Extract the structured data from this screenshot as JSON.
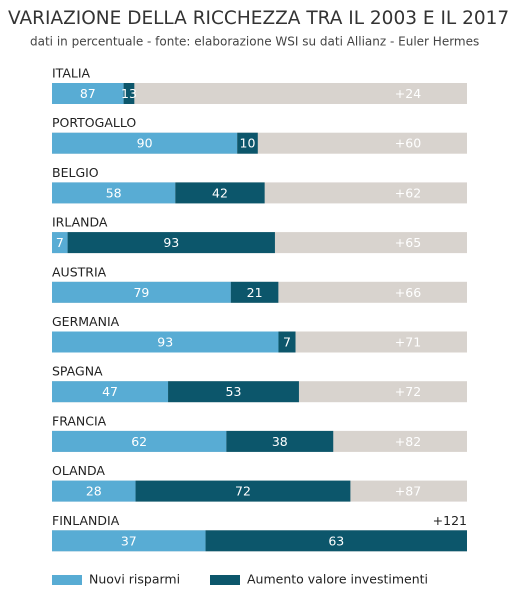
{
  "chart_data": {
    "type": "bar",
    "title": "VARIAZIONE DELLA RICCHEZZA TRA IL 2003 E IL 2017",
    "subtitle": "dati in percentuale - fonte: elaborazione WSI su dati Allianz - Euler Hermes",
    "categories": [
      "ITALIA",
      "PORTOGALLO",
      "BELGIO",
      "IRLANDA",
      "AUSTRIA",
      "GERMANIA",
      "SPAGNA",
      "FRANCIA",
      "OLANDA",
      "FINLANDIA"
    ],
    "series": [
      {
        "name": "Nuovi risparmi",
        "color": "#58acd4",
        "values": [
          87,
          90,
          58,
          7,
          79,
          93,
          47,
          62,
          28,
          37
        ]
      },
      {
        "name": "Aumento valore investimenti",
        "color": "#0c566b",
        "values": [
          13,
          10,
          42,
          93,
          21,
          7,
          53,
          38,
          72,
          63
        ]
      }
    ],
    "totals": {
      "color": "#d8d3ce",
      "values": [
        24,
        60,
        62,
        65,
        66,
        71,
        72,
        82,
        87,
        121
      ],
      "value_labels": [
        "+24",
        "+60",
        "+62",
        "+65",
        "+66",
        "+71",
        "+72",
        "+82",
        "+87",
        "+121"
      ]
    },
    "xlim": [
      0,
      121
    ]
  }
}
